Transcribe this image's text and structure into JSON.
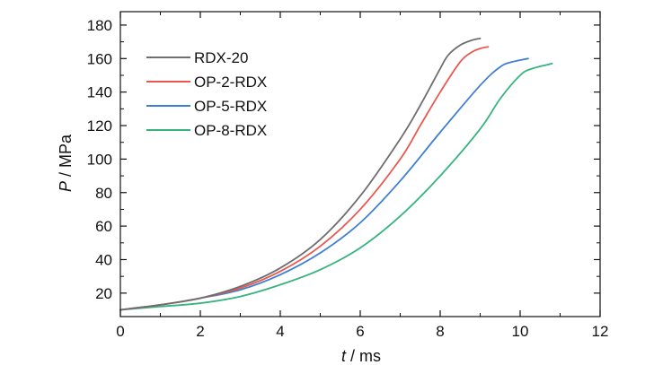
{
  "chart_data": {
    "type": "line",
    "xlabel_var": "t",
    "xlabel_unit": " / ms",
    "ylabel_var": "P",
    "ylabel_unit": " / MPa",
    "xlim": [
      0,
      12
    ],
    "ylim": [
      6,
      188
    ],
    "x_ticks": [
      0,
      2,
      4,
      6,
      8,
      10,
      12
    ],
    "y_ticks": [
      20,
      40,
      60,
      80,
      100,
      120,
      140,
      160,
      180
    ],
    "grid": false,
    "legend_position": "top-left",
    "series": [
      {
        "name": "RDX-20",
        "color": "#6e6e6e",
        "points": [
          [
            0,
            10
          ],
          [
            0.5,
            11.5
          ],
          [
            1,
            13
          ],
          [
            2,
            17
          ],
          [
            3,
            24
          ],
          [
            4,
            35
          ],
          [
            5,
            52
          ],
          [
            6,
            78
          ],
          [
            7,
            112
          ],
          [
            7.5,
            132
          ],
          [
            8,
            154
          ],
          [
            8.2,
            162
          ],
          [
            8.5,
            168
          ],
          [
            8.8,
            171
          ],
          [
            9.0,
            172
          ]
        ]
      },
      {
        "name": "OP-2-RDX",
        "color": "#e8584f",
        "points": [
          [
            0,
            10
          ],
          [
            0.5,
            11.5
          ],
          [
            1,
            13
          ],
          [
            2,
            17
          ],
          [
            3,
            23
          ],
          [
            4,
            33
          ],
          [
            5,
            48
          ],
          [
            6,
            70
          ],
          [
            7,
            100
          ],
          [
            7.5,
            120
          ],
          [
            8,
            140
          ],
          [
            8.5,
            158
          ],
          [
            8.8,
            164
          ],
          [
            9.0,
            166
          ],
          [
            9.2,
            167
          ]
        ]
      },
      {
        "name": "OP-5-RDX",
        "color": "#3e7fd3",
        "points": [
          [
            0,
            10
          ],
          [
            0.5,
            11.5
          ],
          [
            1,
            13
          ],
          [
            2,
            17
          ],
          [
            3,
            22
          ],
          [
            4,
            31
          ],
          [
            5,
            44
          ],
          [
            6,
            62
          ],
          [
            7,
            87
          ],
          [
            8,
            116
          ],
          [
            9,
            144
          ],
          [
            9.5,
            155
          ],
          [
            9.8,
            158
          ],
          [
            10.2,
            160
          ]
        ]
      },
      {
        "name": "OP-8-RDX",
        "color": "#36b37e",
        "points": [
          [
            0,
            10
          ],
          [
            0.5,
            11
          ],
          [
            1,
            12
          ],
          [
            2,
            14
          ],
          [
            3,
            18
          ],
          [
            4,
            25
          ],
          [
            5,
            34
          ],
          [
            6,
            47
          ],
          [
            7,
            66
          ],
          [
            8,
            90
          ],
          [
            9,
            118
          ],
          [
            9.5,
            136
          ],
          [
            10,
            150
          ],
          [
            10.3,
            154
          ],
          [
            10.8,
            157
          ]
        ]
      }
    ]
  }
}
